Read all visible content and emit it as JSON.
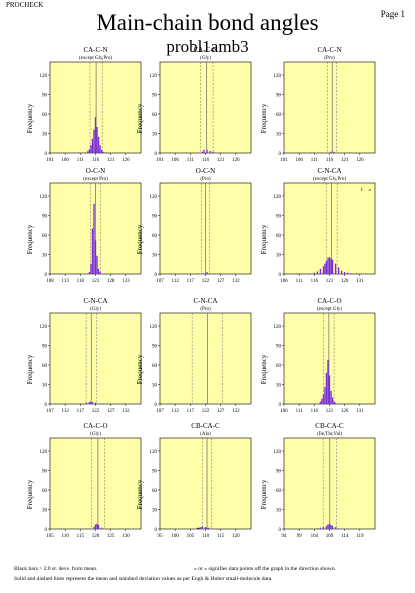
{
  "header": {
    "program": "PROCHECK",
    "page_label": "Page 1",
    "title": "Main-chain bond angles",
    "subtitle": "probl1amb3"
  },
  "footer": {
    "line1_left": "Black bars > 2.0 st. devs. from mean.",
    "line1_right": "« or » signifies data points off the graph in the direction shown.",
    "line2": "Solid and dashed lines represent the mean and standard deviation values as per Engh & Huber small-molecule data."
  },
  "colors": {
    "panel_bg": "#ffffaa",
    "bar": "#7c2fd8",
    "outlier_bar": "#000000",
    "mean_line": "#666666"
  },
  "chart_data": [
    {
      "type": "bar",
      "title": "CA-C-N",
      "subtitle": "(except Gly,Pro)",
      "ylabel": "Frequency",
      "xticks": [
        101,
        106,
        111,
        116,
        121,
        126
      ],
      "xlim": [
        101,
        131
      ],
      "yticks": [
        0,
        30,
        60,
        90,
        120
      ],
      "ylim": [
        0,
        140
      ],
      "mean": 116.2,
      "sd": 2.0,
      "bars": [
        {
          "x": 110.5,
          "y": 1
        },
        {
          "x": 112.5,
          "y": 1
        },
        {
          "x": 113.5,
          "y": 3
        },
        {
          "x": 114,
          "y": 6
        },
        {
          "x": 114.5,
          "y": 12
        },
        {
          "x": 115,
          "y": 22
        },
        {
          "x": 115.5,
          "y": 36
        },
        {
          "x": 116,
          "y": 55
        },
        {
          "x": 116.5,
          "y": 40
        },
        {
          "x": 117,
          "y": 25
        },
        {
          "x": 117.5,
          "y": 12
        },
        {
          "x": 118,
          "y": 5
        },
        {
          "x": 118.5,
          "y": 2
        },
        {
          "x": 119.5,
          "y": 1
        }
      ],
      "outliers": []
    },
    {
      "type": "bar",
      "title": "CA-C-N",
      "subtitle": "(Gly)",
      "ylabel": "Frequency",
      "xticks": [
        101,
        106,
        111,
        116,
        121,
        126
      ],
      "xlim": [
        101,
        131
      ],
      "yticks": [
        0,
        30,
        60,
        90,
        120
      ],
      "ylim": [
        0,
        140
      ],
      "mean": 116.4,
      "sd": 2.1,
      "bars": [
        {
          "x": 115,
          "y": 2
        },
        {
          "x": 115.5,
          "y": 5
        },
        {
          "x": 116.5,
          "y": 5
        },
        {
          "x": 117.5,
          "y": 3
        },
        {
          "x": 118.5,
          "y": 2
        }
      ],
      "outliers": []
    },
    {
      "type": "bar",
      "title": "CA-C-N",
      "subtitle": "(Pro)",
      "ylabel": "Frequency",
      "xticks": [
        101,
        106,
        111,
        116,
        121,
        126
      ],
      "xlim": [
        101,
        131
      ],
      "yticks": [
        0,
        30,
        60,
        90,
        120
      ],
      "ylim": [
        0,
        140
      ],
      "mean": 116.9,
      "sd": 1.5,
      "bars": [
        {
          "x": 116.5,
          "y": 2
        },
        {
          "x": 117.5,
          "y": 2
        }
      ],
      "outliers": []
    },
    {
      "type": "bar",
      "title": "O-C-N",
      "subtitle": "(except Pro)",
      "ylabel": "Frequency",
      "xticks": [
        108,
        113,
        118,
        123,
        128,
        133
      ],
      "xlim": [
        108,
        138
      ],
      "yticks": [
        0,
        30,
        60,
        90,
        120
      ],
      "ylim": [
        0,
        140
      ],
      "mean": 123.0,
      "sd": 1.6,
      "bars": [
        {
          "x": 121,
          "y": 3
        },
        {
          "x": 121.5,
          "y": 15
        },
        {
          "x": 122,
          "y": 70
        },
        {
          "x": 122.5,
          "y": 108
        },
        {
          "x": 123,
          "y": 52
        },
        {
          "x": 123.5,
          "y": 28
        },
        {
          "x": 124,
          "y": 8
        },
        {
          "x": 124.5,
          "y": 3
        }
      ],
      "outliers": []
    },
    {
      "type": "bar",
      "title": "O-C-N",
      "subtitle": "(Pro)",
      "ylabel": "Frequency",
      "xticks": [
        107,
        112,
        117,
        122,
        127,
        132
      ],
      "xlim": [
        107,
        137
      ],
      "yticks": [
        0,
        30,
        60,
        90,
        120
      ],
      "ylim": [
        0,
        140
      ],
      "mean": 122.0,
      "sd": 1.4,
      "bars": [
        {
          "x": 121.5,
          "y": 1
        },
        {
          "x": 122.5,
          "y": 3
        },
        {
          "x": 123.5,
          "y": 1
        }
      ],
      "outliers": []
    },
    {
      "type": "bar",
      "title": "C-N-CA",
      "subtitle": "(except Gly,Pro)",
      "ylabel": "Frequency",
      "xticks": [
        106,
        111,
        116,
        121,
        126,
        131
      ],
      "xlim": [
        106,
        136
      ],
      "yticks": [
        0,
        30,
        60,
        90,
        120
      ],
      "ylim": [
        0,
        140
      ],
      "mean": 121.7,
      "sd": 1.8,
      "bars": [
        {
          "x": 110,
          "y": 1
        },
        {
          "x": 114,
          "y": 1
        },
        {
          "x": 116,
          "y": 2
        },
        {
          "x": 117,
          "y": 4
        },
        {
          "x": 118,
          "y": 8
        },
        {
          "x": 119,
          "y": 12
        },
        {
          "x": 119.5,
          "y": 16
        },
        {
          "x": 120,
          "y": 20
        },
        {
          "x": 120.5,
          "y": 25
        },
        {
          "x": 121,
          "y": 26
        },
        {
          "x": 121.5,
          "y": 24
        },
        {
          "x": 122,
          "y": 22
        },
        {
          "x": 123,
          "y": 16
        },
        {
          "x": 124,
          "y": 10
        },
        {
          "x": 125,
          "y": 5
        },
        {
          "x": 126,
          "y": 3
        },
        {
          "x": 127,
          "y": 2
        },
        {
          "x": 128,
          "y": 1
        },
        {
          "x": 130,
          "y": 1
        }
      ],
      "outliers": [],
      "offscale": [
        {
          "direction": "right",
          "count": "1",
          "marker": "»"
        }
      ]
    },
    {
      "type": "bar",
      "title": "C-N-CA",
      "subtitle": "(Gly)",
      "ylabel": "Frequency",
      "xticks": [
        107,
        112,
        117,
        122,
        127,
        132
      ],
      "xlim": [
        107,
        137
      ],
      "yticks": [
        0,
        30,
        60,
        90,
        120
      ],
      "ylim": [
        0,
        140
      ],
      "mean": 120.6,
      "sd": 1.7,
      "bars": [
        {
          "x": 119,
          "y": 2
        },
        {
          "x": 120,
          "y": 3
        },
        {
          "x": 120.5,
          "y": 4
        },
        {
          "x": 121,
          "y": 3
        },
        {
          "x": 122,
          "y": 2
        }
      ],
      "outliers": []
    },
    {
      "type": "bar",
      "title": "C-N-CA",
      "subtitle": "(Pro)",
      "ylabel": "Frequency",
      "xticks": [
        107,
        112,
        117,
        122,
        127,
        132
      ],
      "xlim": [
        107,
        137
      ],
      "yticks": [
        0,
        30,
        60,
        90,
        120
      ],
      "ylim": [
        0,
        140
      ],
      "mean": 122.6,
      "sd": 5.0,
      "bars": [
        {
          "x": 122.5,
          "y": 1
        }
      ],
      "outliers": []
    },
    {
      "type": "bar",
      "title": "CA-C-O",
      "subtitle": "(except Gly)",
      "ylabel": "Frequency",
      "xticks": [
        106,
        111,
        116,
        121,
        126,
        131
      ],
      "xlim": [
        106,
        136
      ],
      "yticks": [
        0,
        30,
        60,
        90,
        120
      ],
      "ylim": [
        0,
        140
      ],
      "mean": 120.8,
      "sd": 1.7,
      "bars": [
        {
          "x": 118,
          "y": 4
        },
        {
          "x": 118.5,
          "y": 8
        },
        {
          "x": 119,
          "y": 15
        },
        {
          "x": 119.5,
          "y": 26
        },
        {
          "x": 120,
          "y": 48
        },
        {
          "x": 120.5,
          "y": 68
        },
        {
          "x": 121,
          "y": 44
        },
        {
          "x": 121.5,
          "y": 20
        },
        {
          "x": 122,
          "y": 10
        },
        {
          "x": 122.5,
          "y": 4
        },
        {
          "x": 123,
          "y": 2
        }
      ],
      "outliers": []
    },
    {
      "type": "bar",
      "title": "CA-C-O",
      "subtitle": "(Gly)",
      "ylabel": "Frequency",
      "xticks": [
        105,
        110,
        115,
        120,
        125,
        130
      ],
      "xlim": [
        105,
        135
      ],
      "yticks": [
        0,
        30,
        60,
        90,
        120
      ],
      "ylim": [
        0,
        140
      ],
      "mean": 120.8,
      "sd": 2.1,
      "bars": [
        {
          "x": 119.5,
          "y": 3
        },
        {
          "x": 120,
          "y": 7
        },
        {
          "x": 120.5,
          "y": 8
        },
        {
          "x": 121,
          "y": 6
        },
        {
          "x": 122,
          "y": 2
        }
      ],
      "outliers": []
    },
    {
      "type": "bar",
      "title": "CB-CA-C",
      "subtitle": "(Ala)",
      "ylabel": "Frequency",
      "xticks": [
        95,
        100,
        105,
        110,
        115,
        120
      ],
      "xlim": [
        95,
        125
      ],
      "yticks": [
        0,
        30,
        60,
        90,
        120
      ],
      "ylim": [
        0,
        140
      ],
      "mean": 110.5,
      "sd": 1.5,
      "bars": [
        {
          "x": 108,
          "y": 2
        },
        {
          "x": 108.5,
          "y": 3
        },
        {
          "x": 109,
          "y": 4
        },
        {
          "x": 110,
          "y": 3
        },
        {
          "x": 110.5,
          "y": 2
        },
        {
          "x": 111,
          "y": 2
        }
      ],
      "outliers": [
        {
          "x": 107.5,
          "y": 2
        }
      ]
    },
    {
      "type": "bar",
      "title": "CB-CA-C",
      "subtitle": "(Ile,Thr,Val)",
      "ylabel": "Frequency",
      "xticks": [
        94,
        99,
        104,
        109,
        114,
        119
      ],
      "xlim": [
        94,
        124
      ],
      "yticks": [
        0,
        30,
        60,
        90,
        120
      ],
      "ylim": [
        0,
        140
      ],
      "mean": 109.1,
      "sd": 2.2,
      "bars": [
        {
          "x": 105,
          "y": 1
        },
        {
          "x": 106,
          "y": 2
        },
        {
          "x": 107,
          "y": 3
        },
        {
          "x": 108,
          "y": 5
        },
        {
          "x": 108.5,
          "y": 7
        },
        {
          "x": 109,
          "y": 8
        },
        {
          "x": 109.5,
          "y": 6
        },
        {
          "x": 110,
          "y": 5
        },
        {
          "x": 111,
          "y": 3
        },
        {
          "x": 112,
          "y": 1
        }
      ],
      "outliers": []
    }
  ]
}
